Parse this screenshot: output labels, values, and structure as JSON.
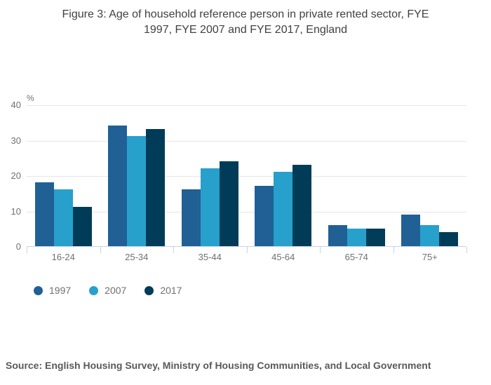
{
  "title": {
    "line1": "Figure 3: Age of household reference person in private rented sector, FYE",
    "line2": "1997, FYE 2007 and FYE 2017, England"
  },
  "chart_data": {
    "type": "bar",
    "title": "Figure 3: Age of household reference person in private rented sector, FYE 1997, FYE 2007 and FYE 2017, England",
    "unit_label": "%",
    "categories": [
      "16-24",
      "25-34",
      "35-44",
      "45-64",
      "65-74",
      "75+"
    ],
    "series": [
      {
        "name": "1997",
        "color": "#206095",
        "values": [
          18,
          34,
          16,
          17,
          6,
          9
        ]
      },
      {
        "name": "2007",
        "color": "#27A0CC",
        "values": [
          16,
          31,
          22,
          21,
          5,
          6
        ]
      },
      {
        "name": "2017",
        "color": "#003C57",
        "values": [
          11,
          33,
          24,
          23,
          5,
          4
        ]
      }
    ],
    "xlabel": "",
    "ylabel": "%",
    "ylim": [
      0,
      40
    ],
    "y_ticks": [
      0,
      10,
      20,
      30,
      40
    ],
    "grid": "horizontal",
    "legend_position": "bottom-left"
  },
  "source": "Source: English Housing Survey, Ministry of Housing Communities, and Local Government",
  "colors": {
    "title_text": "#414042",
    "axis_text": "#707070",
    "gridline": "#e6e6e6",
    "axis_line": "#c6d3ea",
    "source_text": "#595959"
  }
}
